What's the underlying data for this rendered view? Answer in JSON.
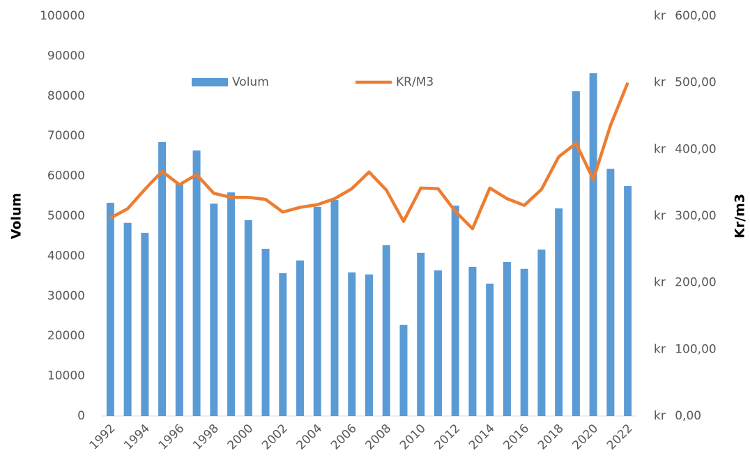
{
  "chart_data": {
    "type": "bar+line",
    "categories": [
      "1992",
      null,
      "1994",
      null,
      "1996",
      null,
      "1998",
      null,
      "2000",
      null,
      "2002",
      null,
      "2004",
      null,
      "2006",
      null,
      "2008",
      null,
      "2010",
      null,
      "2012",
      null,
      "2014",
      null,
      "2016",
      null,
      "2018",
      null,
      "2020",
      null,
      "2022"
    ],
    "series": [
      {
        "name": "Volum",
        "type": "bar",
        "color": "#5b9bd5",
        "values": [
          53300,
          48300,
          45800,
          68500,
          58000,
          66400,
          53100,
          55900,
          49000,
          41800,
          35700,
          38900,
          52300,
          54000,
          35900,
          35400,
          42700,
          22800,
          40800,
          36400,
          52600,
          37300,
          33100,
          38500,
          36800,
          41600,
          51900,
          81200,
          85700,
          61800,
          57500
        ]
      },
      {
        "name": "KR/M3",
        "type": "line",
        "axis": "y2",
        "color": "#ed7d31",
        "values": [
          297,
          311,
          340,
          367,
          347,
          362,
          334,
          328,
          328,
          325,
          306,
          313,
          317,
          326,
          341,
          366,
          339,
          292,
          342,
          341,
          307,
          281,
          342,
          326,
          316,
          340,
          389,
          409,
          355,
          436,
          500
        ]
      }
    ],
    "ylabel": "Volum",
    "y2label": "Kr/m3",
    "ylim": [
      0,
      100000
    ],
    "yticks": [
      0,
      10000,
      20000,
      30000,
      40000,
      50000,
      60000,
      70000,
      80000,
      90000,
      100000
    ],
    "y2lim": [
      0,
      600
    ],
    "y2ticks": [
      {
        "value": 0,
        "label": "kr 0,00"
      },
      {
        "value": 100,
        "label": "kr 100,00"
      },
      {
        "value": 200,
        "label": "kr 200,00"
      },
      {
        "value": 300,
        "label": "kr 300,00"
      },
      {
        "value": 400,
        "label": "kr 400,00"
      },
      {
        "value": 500,
        "label": "kr 500,00"
      },
      {
        "value": 600,
        "label": "kr 600,00"
      }
    ],
    "legend": "top",
    "grid": false
  }
}
